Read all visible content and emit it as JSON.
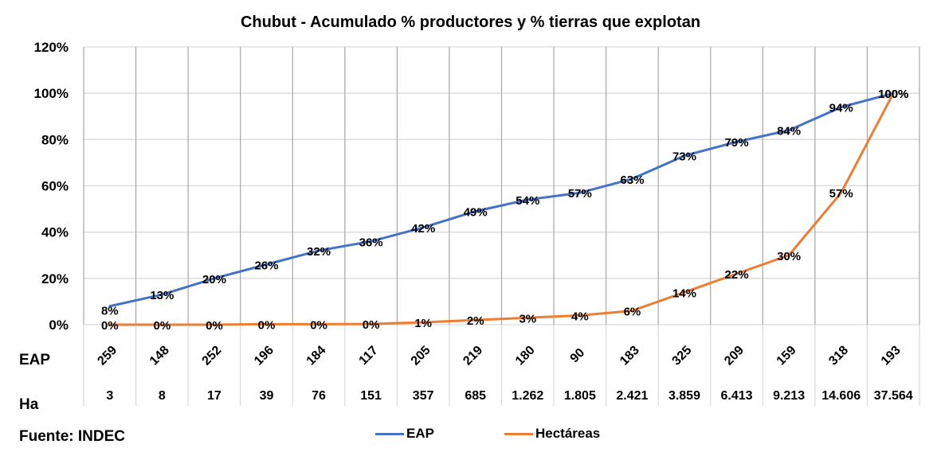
{
  "chart_data": {
    "type": "line",
    "title": "Chubut - Acumulado % productores y % tierras que explotan",
    "xlabel": "",
    "ylabel": "",
    "ylim": [
      0,
      1.2
    ],
    "yticks": [
      "0%",
      "20%",
      "40%",
      "60%",
      "80%",
      "100%",
      "120%"
    ],
    "grid": true,
    "legend_position": "bottom",
    "categories_eap": [
      "259",
      "148",
      "252",
      "196",
      "184",
      "117",
      "205",
      "219",
      "180",
      "90",
      "183",
      "325",
      "209",
      "159",
      "318",
      "193"
    ],
    "categories_ha": [
      "3",
      "8",
      "17",
      "39",
      "76",
      "151",
      "357",
      "685",
      "1.262",
      "1.805",
      "2.421",
      "3.859",
      "6.413",
      "9.213",
      "14.606",
      "37.564"
    ],
    "row_labels": [
      "EAP",
      "Ha"
    ],
    "series": [
      {
        "name": "EAP",
        "color": "#4472C4",
        "values": [
          0.08,
          0.13,
          0.2,
          0.26,
          0.32,
          0.36,
          0.42,
          0.49,
          0.54,
          0.57,
          0.63,
          0.73,
          0.79,
          0.84,
          0.94,
          1.0
        ],
        "labels": [
          "8%",
          "13%",
          "20%",
          "26%",
          "32%",
          "36%",
          "42%",
          "49%",
          "54%",
          "57%",
          "63%",
          "73%",
          "79%",
          "84%",
          "94%",
          "100%"
        ]
      },
      {
        "name": "Hectáreas",
        "color": "#ED7D31",
        "values": [
          0.0,
          0.0,
          0.0,
          0.002,
          0.002,
          0.003,
          0.01,
          0.02,
          0.03,
          0.04,
          0.06,
          0.14,
          0.22,
          0.3,
          0.57,
          1.0
        ],
        "labels": [
          "0%",
          "0%",
          "0%",
          "0%",
          "0%",
          "0%",
          "1%",
          "2%",
          "3%",
          "4%",
          "6%",
          "14%",
          "22%",
          "30%",
          "57%",
          "100%"
        ]
      }
    ],
    "annotations": [
      "Fuente: INDEC"
    ]
  },
  "source": "Fuente: INDEC",
  "legend": [
    {
      "label": "EAP",
      "color": "#4472C4"
    },
    {
      "label": "Hectáreas",
      "color": "#ED7D31"
    }
  ]
}
